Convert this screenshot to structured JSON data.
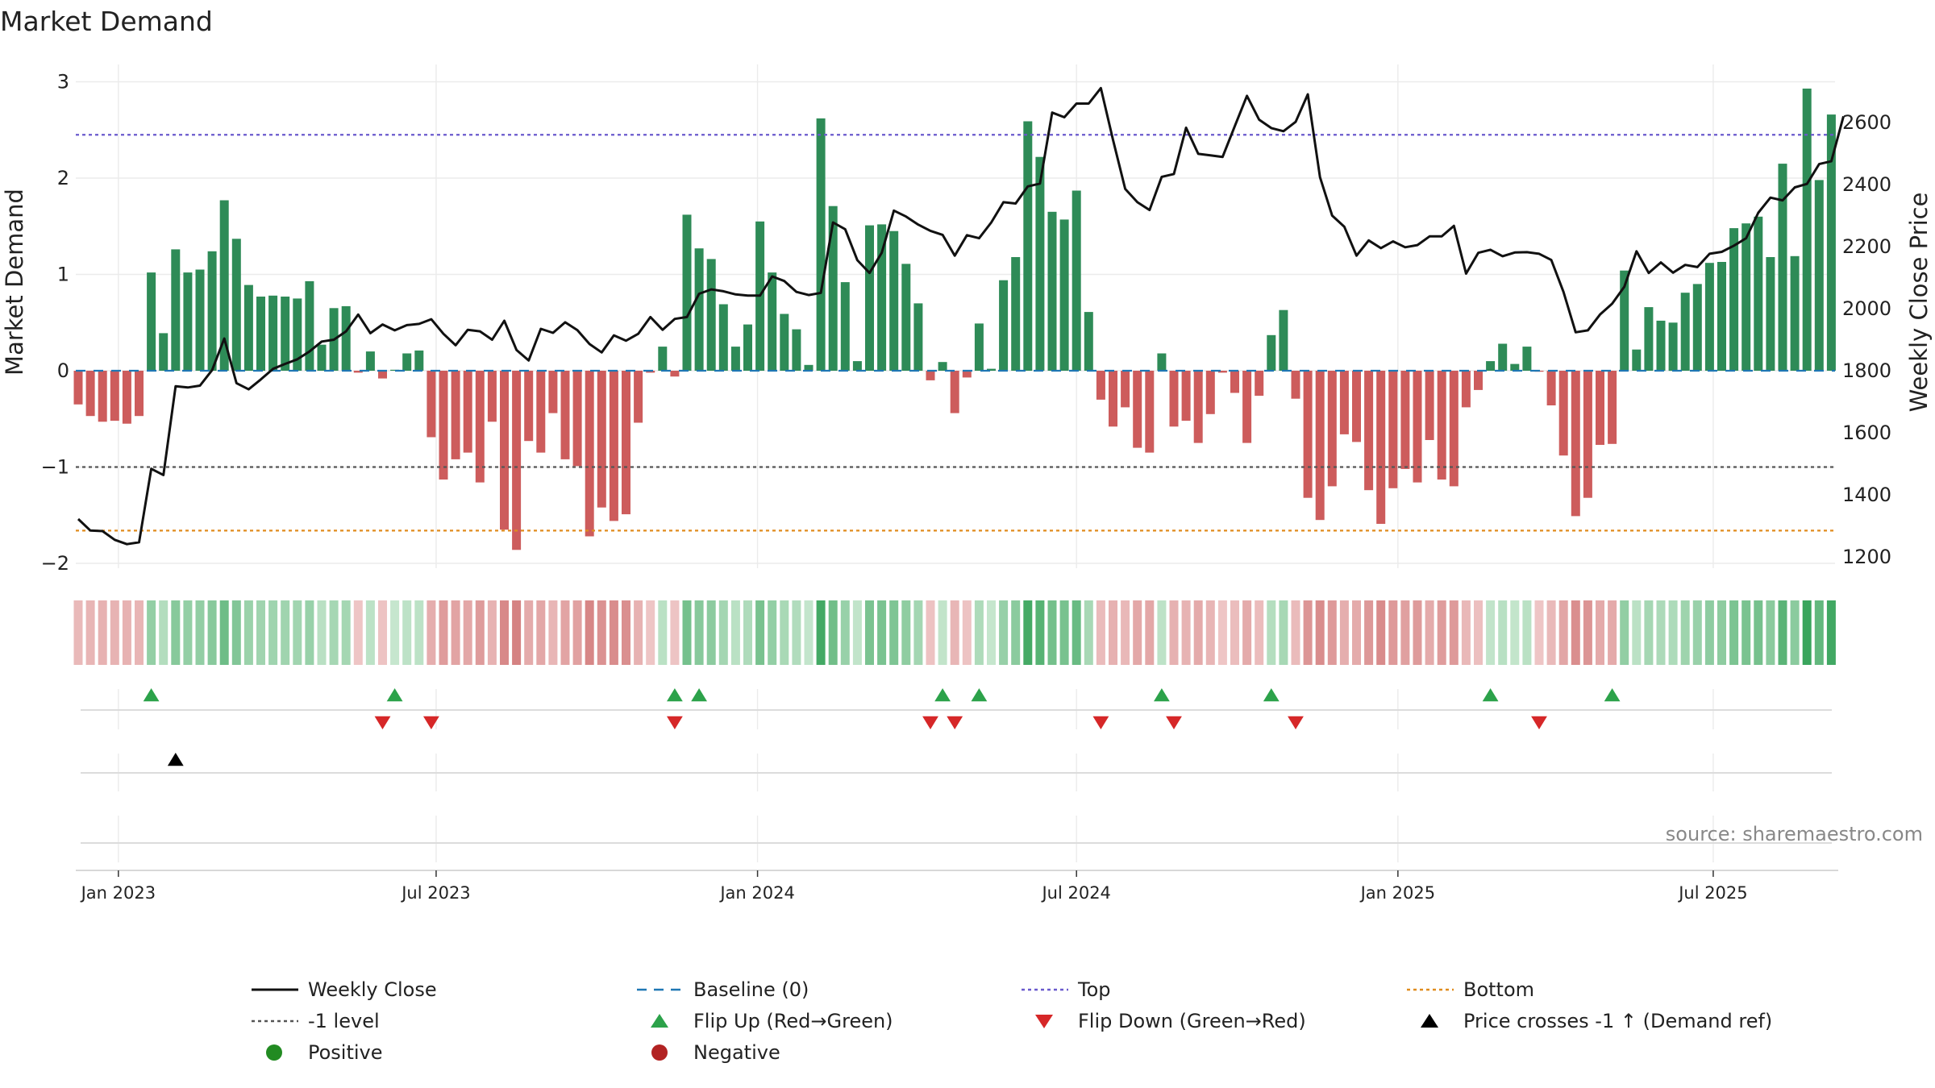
{
  "chart_data": {
    "type": "bar+line",
    "title": "Market Demand",
    "ylabel_left": "Market Demand",
    "ylabel_right": "Weekly Close Price",
    "ylim_left": [
      -2.2,
      3.1
    ],
    "ylim_right": [
      1150,
      2780
    ],
    "yticks_left": [
      {
        "v": 3,
        "t": "3"
      },
      {
        "v": 2,
        "t": "2"
      },
      {
        "v": 1,
        "t": "1"
      },
      {
        "v": 0,
        "t": "0"
      },
      {
        "v": -1,
        "t": "−1"
      },
      {
        "v": -2,
        "t": "−2"
      }
    ],
    "yticks_right": [
      {
        "v": 2600,
        "t": "2600"
      },
      {
        "v": 2400,
        "t": "2400"
      },
      {
        "v": 2200,
        "t": "2200"
      },
      {
        "v": 2000,
        "t": "2000"
      },
      {
        "v": 1800,
        "t": "1800"
      },
      {
        "v": 1600,
        "t": "1600"
      },
      {
        "v": 1400,
        "t": "1400"
      },
      {
        "v": 1200,
        "t": "1200"
      }
    ],
    "x_start": "Dec 2022 (week 0)",
    "xticks": [
      {
        "week": 3.3,
        "label": "Jan 2023"
      },
      {
        "week": 29.4,
        "label": "Jul 2023"
      },
      {
        "week": 55.8,
        "label": "Jan 2024"
      },
      {
        "week": 82.0,
        "label": "Jul 2024"
      },
      {
        "week": 108.4,
        "label": "Jan 2025"
      },
      {
        "week": 134.3,
        "label": "Jul 2025"
      }
    ],
    "levels": {
      "top": 2.45,
      "bottom": -1.66,
      "minus_one": -1,
      "baseline": 0
    },
    "demand": [
      -0.35,
      -0.47,
      -0.53,
      -0.52,
      -0.55,
      -0.47,
      1.02,
      0.39,
      1.26,
      1.02,
      1.05,
      1.24,
      1.77,
      1.37,
      0.89,
      0.77,
      0.78,
      0.77,
      0.75,
      0.93,
      0.27,
      0.65,
      0.67,
      -0.02,
      0.2,
      -0.08,
      0.01,
      0.18,
      0.21,
      -0.69,
      -1.13,
      -0.92,
      -0.85,
      -1.16,
      -0.53,
      -1.65,
      -1.86,
      -0.73,
      -0.85,
      -0.44,
      -0.92,
      -0.99,
      -1.72,
      -1.42,
      -1.56,
      -1.49,
      -0.54,
      -0.02,
      0.25,
      -0.06,
      1.62,
      1.27,
      1.16,
      0.69,
      0.25,
      0.48,
      1.55,
      1.02,
      0.59,
      0.43,
      0.06,
      2.62,
      1.71,
      0.92,
      0.1,
      1.51,
      1.52,
      1.45,
      1.11,
      0.7,
      -0.1,
      0.09,
      -0.44,
      -0.07,
      0.49,
      0.02,
      0.94,
      1.18,
      2.59,
      2.22,
      1.65,
      1.57,
      1.87,
      0.61,
      -0.3,
      -0.58,
      -0.38,
      -0.8,
      -0.85,
      0.18,
      -0.58,
      -0.52,
      -0.75,
      -0.45,
      -0.02,
      -0.23,
      -0.75,
      -0.26,
      0.37,
      0.63,
      -0.29,
      -1.32,
      -1.55,
      -1.2,
      -0.66,
      -0.74,
      -1.24,
      -1.59,
      -1.22,
      -1.02,
      -1.16,
      -0.72,
      -1.13,
      -1.2,
      -0.38,
      -0.2,
      0.1,
      0.28,
      0.07,
      0.25,
      -0.01,
      -0.36,
      -0.88,
      -1.51,
      -1.32,
      -0.77,
      -0.76,
      1.04,
      0.22,
      0.66,
      0.52,
      0.5,
      0.81,
      0.9,
      1.12,
      1.13,
      1.48,
      1.53,
      1.6,
      1.18,
      2.15,
      1.19,
      2.93,
      1.98,
      2.66
    ],
    "weekly_close": [
      1322,
      1285,
      1283,
      1255,
      1241,
      1247,
      1484,
      1464,
      1750,
      1746,
      1752,
      1802,
      1904,
      1760,
      1740,
      1772,
      1806,
      1822,
      1837,
      1862,
      1894,
      1900,
      1927,
      1981,
      1921,
      1949,
      1930,
      1947,
      1951,
      1966,
      1919,
      1882,
      1932,
      1927,
      1900,
      1961,
      1867,
      1833,
      1935,
      1922,
      1956,
      1931,
      1886,
      1859,
      1914,
      1897,
      1919,
      1973,
      1932,
      1967,
      1973,
      2048,
      2062,
      2056,
      2046,
      2042,
      2042,
      2104,
      2089,
      2054,
      2044,
      2051,
      2278,
      2256,
      2156,
      2115,
      2180,
      2316,
      2297,
      2271,
      2251,
      2238,
      2171,
      2237,
      2227,
      2278,
      2343,
      2339,
      2394,
      2403,
      2632,
      2617,
      2661,
      2661,
      2711,
      2544,
      2386,
      2343,
      2318,
      2425,
      2434,
      2583,
      2499,
      2494,
      2489,
      2588,
      2686,
      2609,
      2582,
      2572,
      2602,
      2691,
      2424,
      2300,
      2264,
      2171,
      2220,
      2195,
      2217,
      2198,
      2205,
      2233,
      2233,
      2267,
      2113,
      2180,
      2190,
      2169,
      2181,
      2182,
      2177,
      2157,
      2054,
      1924,
      1930,
      1981,
      2016,
      2071,
      2185,
      2115,
      2149,
      2116,
      2141,
      2134,
      2177,
      2183,
      2203,
      2227,
      2309,
      2358,
      2349,
      2391,
      2402,
      2466,
      2475,
      2620
    ],
    "flip_up_weeks": [
      6,
      26,
      49,
      51,
      71,
      74,
      89,
      98,
      116,
      126
    ],
    "flip_down_weeks": [
      25,
      29,
      49,
      70,
      72,
      84,
      90,
      100,
      120
    ],
    "price_cross_weeks": [
      8
    ],
    "legend": [
      {
        "label": "Weekly Close",
        "marker": "solid-line",
        "color": "#111111"
      },
      {
        "label": "Baseline (0)",
        "marker": "dashed-line",
        "color": "#1f77b4"
      },
      {
        "label": "Top",
        "marker": "dotted-line",
        "color": "#6a5acd"
      },
      {
        "label": "Bottom",
        "marker": "dotted-line",
        "color": "#e08c1e"
      },
      {
        "label": "-1 level",
        "marker": "dotted-line",
        "color": "#555555"
      },
      {
        "label": "Flip Up (Red→Green)",
        "marker": "triangle-up",
        "color": "#2ca24a"
      },
      {
        "label": "Flip Down (Green→Red)",
        "marker": "triangle-down",
        "color": "#d62728"
      },
      {
        "label": "Price crosses -1 ↑ (Demand ref)",
        "marker": "triangle-up",
        "color": "#000000"
      },
      {
        "label": "Positive",
        "marker": "circle",
        "color": "#228b22"
      },
      {
        "label": "Negative",
        "marker": "circle",
        "color": "#b22222"
      }
    ],
    "colors": {
      "positive_bar": "#2e8b57",
      "negative_bar": "#cd5c5c",
      "baseline": "#1f77b4",
      "top": "#6a5acd",
      "bottom": "#e08c1e",
      "minus_one": "#555555"
    },
    "source": "source: sharemaestro.com"
  }
}
